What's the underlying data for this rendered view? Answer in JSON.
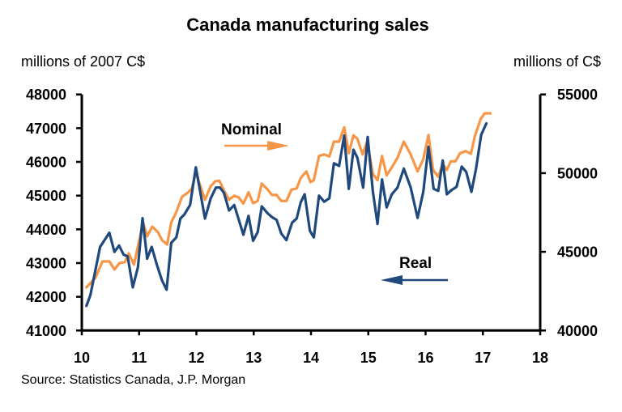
{
  "chart_data": {
    "type": "line",
    "title": "Canada manufacturing sales",
    "ylabel_left": "millions of 2007 C$",
    "ylabel_right": "millions of C$",
    "xlabel": "",
    "source": "Source: Statistics Canada, J.P. Morgan",
    "x_ticks": [
      "10",
      "11",
      "12",
      "13",
      "14",
      "15",
      "16",
      "17",
      "18"
    ],
    "xlim": [
      10,
      18
    ],
    "y_left_ticks": [
      "48000",
      "47000",
      "46000",
      "45000",
      "44000",
      "43000",
      "42000",
      "41000"
    ],
    "ylim_left": [
      41000,
      48000
    ],
    "y_right_ticks": [
      "55000",
      "50000",
      "45000",
      "40000"
    ],
    "ylim_right": [
      40000,
      55000
    ],
    "grid": false,
    "legend": "inline-annotations",
    "annotations": [
      {
        "text": "Nominal",
        "arrow": "right",
        "series": "Nominal"
      },
      {
        "text": "Real",
        "arrow": "left",
        "series": "Real"
      }
    ],
    "series": [
      {
        "name": "Real",
        "axis": "left",
        "color": "#1F497D",
        "x": [
          10.08,
          10.15,
          10.32,
          10.48,
          10.57,
          10.65,
          10.73,
          10.8,
          10.89,
          10.98,
          11.06,
          11.14,
          11.22,
          11.31,
          11.4,
          11.48,
          11.56,
          11.65,
          11.72,
          11.79,
          11.89,
          11.99,
          12.15,
          12.25,
          12.34,
          12.41,
          12.48,
          12.57,
          12.66,
          12.74,
          12.82,
          12.91,
          12.99,
          13.07,
          13.14,
          13.24,
          13.32,
          13.4,
          13.48,
          13.57,
          13.67,
          13.75,
          13.82,
          13.89,
          13.98,
          14.05,
          14.14,
          14.23,
          14.32,
          14.4,
          14.49,
          14.58,
          14.66,
          14.74,
          14.81,
          14.91,
          14.99,
          15.08,
          15.16,
          15.24,
          15.32,
          15.41,
          15.51,
          15.62,
          15.74,
          15.86,
          15.96,
          16.05,
          16.14,
          16.22,
          16.3,
          16.37,
          16.45,
          16.54,
          16.63,
          16.71,
          16.8,
          16.88,
          16.97,
          17.06
        ],
        "values": [
          41730,
          42050,
          43480,
          43900,
          43330,
          43520,
          43250,
          43200,
          42280,
          42880,
          44330,
          43130,
          43480,
          42950,
          42480,
          42210,
          43600,
          43760,
          44320,
          44440,
          44720,
          45840,
          44320,
          44920,
          45240,
          45240,
          45080,
          44560,
          44720,
          44280,
          43840,
          44400,
          43660,
          43920,
          44680,
          44480,
          44360,
          44280,
          43880,
          43680,
          44200,
          44320,
          44800,
          45040,
          43960,
          43760,
          45000,
          44820,
          44920,
          45960,
          45880,
          46780,
          45200,
          46360,
          46120,
          45240,
          46740,
          45120,
          44160,
          45480,
          44650,
          45040,
          45240,
          45800,
          45240,
          44340,
          45120,
          46450,
          45200,
          45140,
          46040,
          45040,
          45160,
          45260,
          45860,
          45700,
          45110,
          45800,
          46800,
          47140
        ]
      },
      {
        "name": "Nominal",
        "axis": "right",
        "color": "#F79646",
        "x": [
          10.08,
          10.24,
          10.36,
          10.48,
          10.57,
          10.66,
          10.75,
          10.82,
          10.91,
          11.07,
          11.14,
          11.23,
          11.33,
          11.4,
          11.49,
          11.56,
          11.65,
          11.75,
          11.85,
          11.92,
          11.99,
          12.15,
          12.25,
          12.33,
          12.4,
          12.48,
          12.57,
          12.66,
          12.74,
          12.82,
          12.91,
          12.99,
          13.07,
          13.14,
          13.24,
          13.32,
          13.4,
          13.48,
          13.57,
          13.66,
          13.75,
          13.82,
          13.92,
          13.99,
          14.05,
          14.14,
          14.23,
          14.32,
          14.4,
          14.49,
          14.58,
          14.66,
          14.74,
          14.81,
          14.9,
          14.98,
          15.08,
          15.16,
          15.24,
          15.32,
          15.41,
          15.51,
          15.62,
          15.74,
          15.86,
          15.96,
          16.05,
          16.13,
          16.22,
          16.3,
          16.37,
          16.44,
          16.52,
          16.6,
          16.7,
          16.79,
          16.86,
          16.96,
          17.03,
          17.13
        ],
        "values": [
          42740,
          43360,
          44390,
          44390,
          43880,
          44290,
          44340,
          44900,
          44180,
          46860,
          45980,
          46600,
          46240,
          45730,
          45470,
          46860,
          47530,
          48500,
          48760,
          49020,
          50040,
          48310,
          49170,
          49480,
          49520,
          48910,
          48310,
          48570,
          48450,
          48060,
          48780,
          48090,
          48230,
          49340,
          48970,
          48610,
          48610,
          48230,
          48230,
          48950,
          49030,
          49690,
          50110,
          49430,
          49550,
          51090,
          51190,
          51060,
          52000,
          52000,
          52910,
          51260,
          52400,
          52180,
          51190,
          52000,
          49950,
          49550,
          51090,
          49860,
          50370,
          50970,
          52000,
          51190,
          50110,
          50890,
          52430,
          50200,
          49770,
          50580,
          50200,
          50750,
          50750,
          51260,
          51400,
          51230,
          52350,
          53430,
          53800,
          53800
        ]
      }
    ]
  }
}
